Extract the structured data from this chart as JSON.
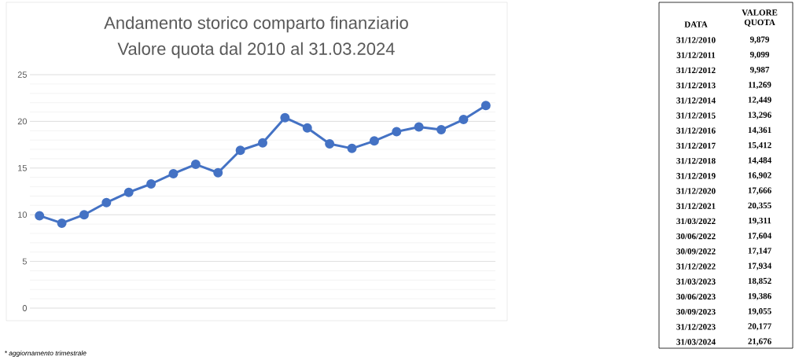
{
  "chart_data": [
    {
      "type": "line",
      "title": "Andamento storico comparto finanziario",
      "subtitle": "Valore quota dal 2010 al 31.03.2024",
      "categories": [
        null,
        null,
        null,
        null,
        null,
        null,
        null,
        null,
        null,
        null,
        null,
        null,
        null,
        null,
        null,
        null,
        null,
        null,
        null,
        null,
        null
      ],
      "values": [
        9.9,
        9.1,
        10.0,
        11.3,
        12.4,
        13.3,
        14.4,
        15.4,
        14.5,
        16.9,
        17.7,
        20.4,
        19.3,
        17.6,
        17.1,
        17.9,
        18.9,
        19.4,
        19.1,
        20.2,
        21.7
      ],
      "color": "#4472c4",
      "ylim": [
        0,
        25
      ],
      "yticks": [
        0,
        5,
        10,
        15,
        20,
        25
      ],
      "grid": "y",
      "tick_labels": "y",
      "marker": "circle",
      "line_style": "solid",
      "annotations": [
        "* aggiornamento trimestrale"
      ]
    },
    {
      "type": "other",
      "annotations": [
        "DATA",
        "VALORE QUOTA",
        "31/12/2010",
        "9,879",
        "31/12/2011",
        "9,099",
        "31/12/2012",
        "9,987",
        "31/12/2013",
        "11,269",
        "31/12/2014",
        "12,449",
        "31/12/2015",
        "13,296",
        "31/12/2016",
        "14,361",
        "31/12/2017",
        "15,412",
        "31/12/2018",
        "14,484",
        "31/12/2019",
        "16,902",
        "31/12/2020",
        "17,666",
        "31/12/2021",
        "20,355",
        "31/03/2022",
        "19,311",
        "30/06/2022",
        "17,604",
        "30/09/2022",
        "17,147",
        "31/12/2022",
        "17,934",
        "31/03/2023",
        "18,852",
        "30/06/2023",
        "19,386",
        "30/09/2023",
        "19,055",
        "31/12/2023",
        "20,177",
        "31/03/2024",
        "21,676"
      ]
    }
  ]
}
